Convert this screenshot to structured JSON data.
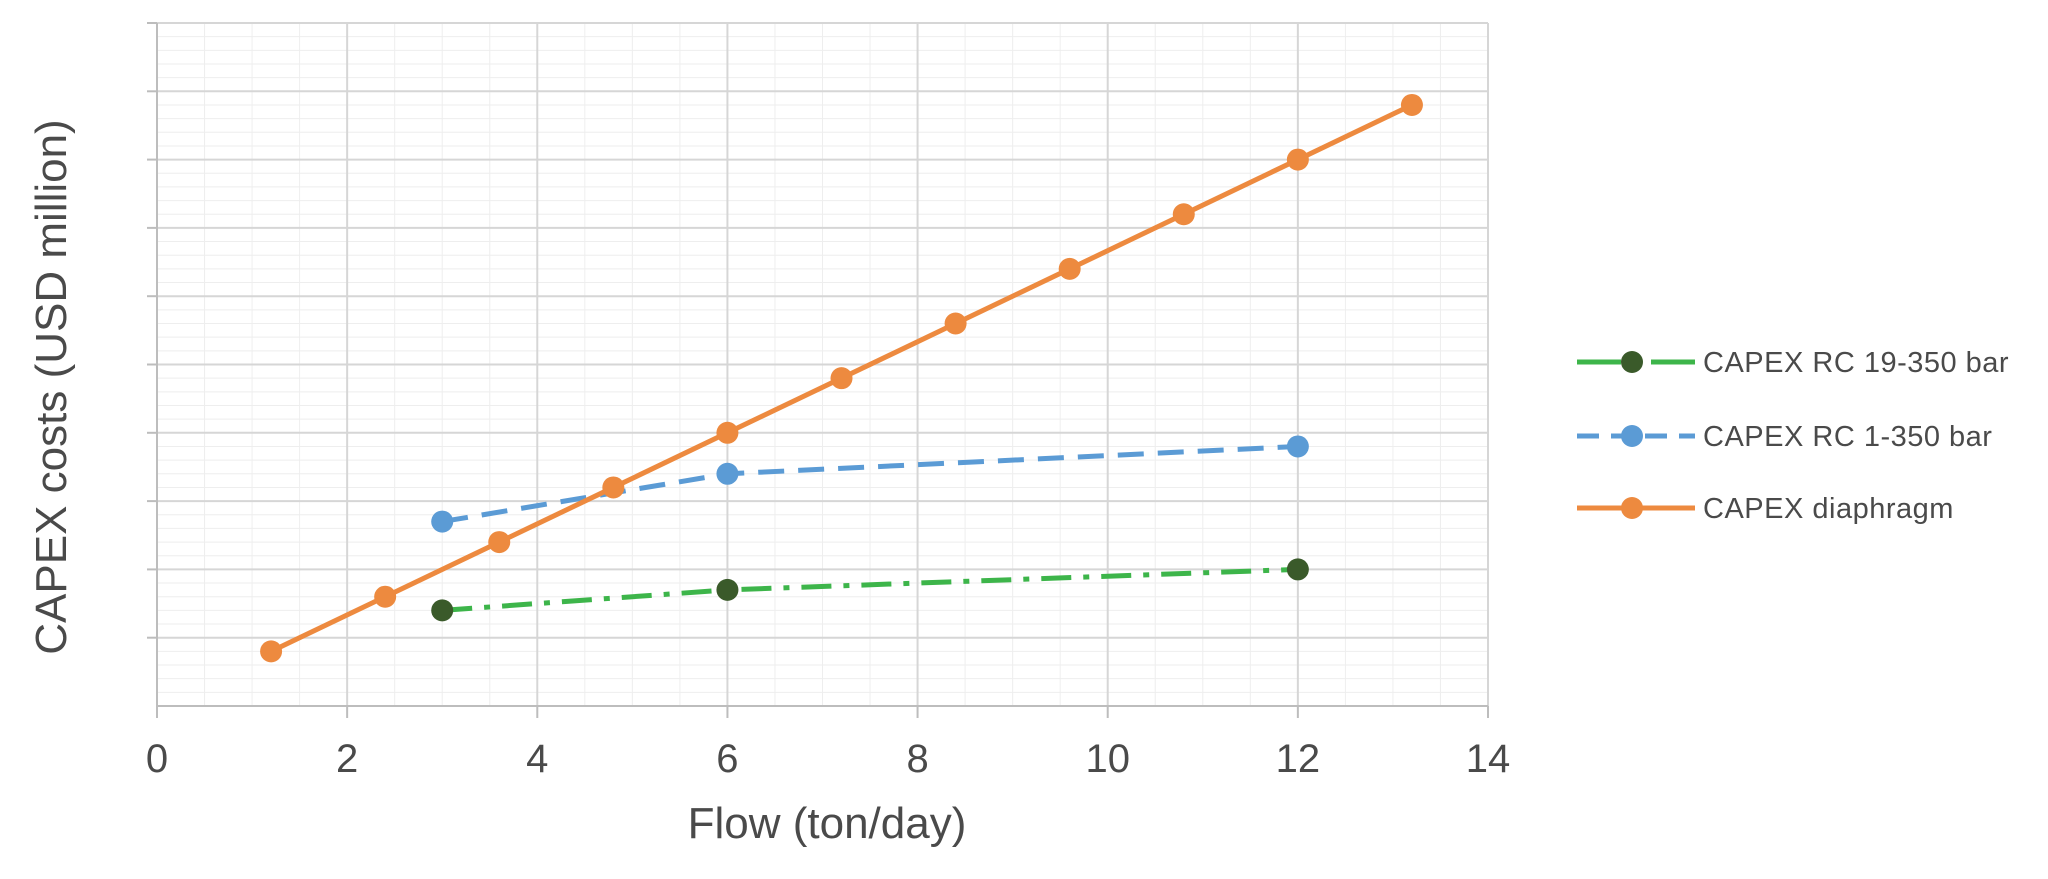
{
  "chart_data": {
    "type": "line",
    "xlabel": "Flow (ton/day)",
    "ylabel": "CAPEX costs (USD million)",
    "xlim": [
      0,
      14
    ],
    "ylim": [
      0,
      10
    ],
    "x_ticks": [
      0,
      2,
      4,
      6,
      8,
      10,
      12,
      14
    ],
    "y_tick_labels_shown": false,
    "grid": true,
    "legend_position": "right",
    "series": [
      {
        "name": "CAPEX RC 19-350 bar",
        "line_style": "dash-dot",
        "line_color": "#3DB54A",
        "marker_color": "#3A5A2A",
        "x": [
          3,
          6,
          12
        ],
        "y": [
          1.4,
          1.7,
          2.0
        ]
      },
      {
        "name": "CAPEX RC 1-350 bar",
        "line_style": "dashed",
        "line_color": "#5B9BD5",
        "marker_color": "#5B9BD5",
        "x": [
          3,
          6,
          12
        ],
        "y": [
          2.7,
          3.4,
          3.8
        ]
      },
      {
        "name": "CAPEX diaphragm",
        "line_style": "solid",
        "line_color": "#ED8A3F",
        "marker_color": "#ED8A3F",
        "x": [
          1.2,
          2.4,
          3.6,
          4.8,
          6.0,
          7.2,
          8.4,
          9.6,
          10.8,
          12.0,
          13.2
        ],
        "y": [
          0.8,
          1.6,
          2.4,
          3.2,
          4.0,
          4.8,
          5.6,
          6.4,
          7.2,
          8.0,
          8.8
        ]
      }
    ]
  }
}
